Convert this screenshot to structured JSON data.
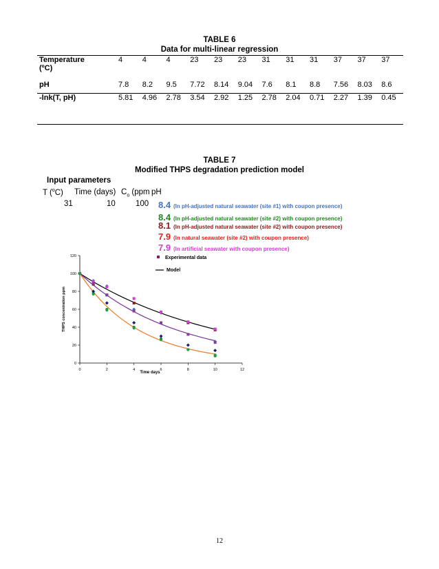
{
  "table6": {
    "title": "TABLE 6",
    "subtitle": "Data for multi-linear regression",
    "temp_label": "Temperature",
    "temp_unit": "(ºC)",
    "ph_label": "pH",
    "lnk_label": "-lnk(T, pH)",
    "temps": [
      "4",
      "4",
      "4",
      "23",
      "23",
      "23",
      "31",
      "31",
      "31",
      "37",
      "37",
      "37"
    ],
    "phs": [
      "7.8",
      "8.2",
      "9.5",
      "7.72",
      "8.14",
      "9.04",
      "7.6",
      "8.1",
      "8.8",
      "7.56",
      "8.03",
      "8.6"
    ],
    "lnks": [
      "5.81",
      "4.96",
      "2.78",
      "3.54",
      "2.92",
      "1.25",
      "2.78",
      "2.04",
      "0.71",
      "2.27",
      "1.39",
      "0.45"
    ]
  },
  "table7": {
    "title": "TABLE 7",
    "subtitle": "Modified THPS degradation prediction model",
    "input_params": "Input parameters",
    "col_t": "T (",
    "col_t_unit": "o",
    "col_t_end": "C)",
    "col_time": "Time (days)",
    "col_c": "C",
    "col_c_sub": "o",
    "col_c_end": " (ppm",
    "col_ph": "pH",
    "val_t": "31",
    "val_time": "10",
    "val_c": "100",
    "ph_entries": [
      {
        "value": "8.4",
        "desc": "(In pH-adjusted natural seawater (site #1) with coupon presence)",
        "color": "#4472c4"
      },
      {
        "value": "8.4",
        "desc": "(In pH-adjusted natural seawater (site #2) with coupon presence)",
        "color": "#1e8a1e"
      },
      {
        "value": "8.1",
        "desc": "(In pH-adjusted natural seawater (site #2) with coupon presence)",
        "color": "#8b1a1a"
      },
      {
        "value": "7.9",
        "desc": "(In natural seawater (site #2) with coupon presence)",
        "color": "#e02020"
      },
      {
        "value": "7.9",
        "desc": "(In artificial seawater with coupon presence)",
        "color": "#d040d0"
      }
    ]
  },
  "chart_data": {
    "type": "scatter",
    "xlabel": "Time days",
    "ylabel": "THPS concentration ppm",
    "xlim": [
      0,
      12
    ],
    "ylim": [
      0,
      120
    ],
    "xticks": [
      "0",
      "2",
      "4",
      "6",
      "8",
      "10",
      "12"
    ],
    "yticks": [
      "0",
      "20",
      "40",
      "60",
      "80",
      "100",
      "120"
    ],
    "legend": [
      {
        "label": "Experimental data",
        "marker": "square"
      },
      {
        "label": "Model",
        "marker": "line"
      }
    ],
    "experimental": [
      {
        "color": "#4472c4",
        "shape": "diamond",
        "points": [
          [
            0,
            100
          ],
          [
            1,
            92
          ],
          [
            2,
            86
          ],
          [
            4,
            60
          ],
          [
            6,
            56
          ],
          [
            8,
            46
          ],
          [
            10,
            24
          ]
        ]
      },
      {
        "color": "#1e8a1e",
        "shape": "circle",
        "points": [
          [
            0,
            100
          ],
          [
            1,
            78
          ],
          [
            2,
            60
          ],
          [
            4,
            40
          ],
          [
            6,
            27
          ],
          [
            8,
            15
          ],
          [
            10,
            8
          ]
        ]
      },
      {
        "color": "#1a1a7a",
        "shape": "diamond",
        "points": [
          [
            0,
            100
          ],
          [
            1,
            80
          ],
          [
            2,
            67
          ],
          [
            4,
            45
          ],
          [
            6,
            30
          ],
          [
            8,
            20
          ],
          [
            10,
            14
          ]
        ]
      },
      {
        "color": "#8b1a1a",
        "shape": "square",
        "points": [
          [
            0,
            100
          ],
          [
            1,
            88
          ],
          [
            2,
            76
          ],
          [
            4,
            67
          ],
          [
            6,
            57
          ],
          [
            8,
            45
          ],
          [
            10,
            37
          ]
        ]
      },
      {
        "color": "#d040d0",
        "shape": "square",
        "points": [
          [
            0,
            100
          ],
          [
            1,
            91
          ],
          [
            2,
            85
          ],
          [
            4,
            72
          ],
          [
            6,
            57
          ],
          [
            8,
            46
          ],
          [
            10,
            38
          ]
        ]
      },
      {
        "color": "#8040a0",
        "shape": "square",
        "points": [
          [
            0,
            100
          ],
          [
            1,
            89
          ],
          [
            2,
            76
          ],
          [
            4,
            58
          ],
          [
            6,
            45
          ],
          [
            8,
            32
          ],
          [
            10,
            23
          ]
        ]
      },
      {
        "color": "#20a040",
        "shape": "circle",
        "points": [
          [
            0,
            100
          ],
          [
            1,
            77
          ],
          [
            2,
            59
          ],
          [
            4,
            39
          ],
          [
            6,
            26
          ],
          [
            8,
            15
          ],
          [
            10,
            9
          ]
        ]
      }
    ],
    "models": [
      {
        "color": "#000000",
        "k": 0.0975
      },
      {
        "color": "#7a2f9a",
        "k": 0.139
      },
      {
        "color": "#f07820",
        "k": 0.23
      }
    ]
  },
  "page_number": "12"
}
